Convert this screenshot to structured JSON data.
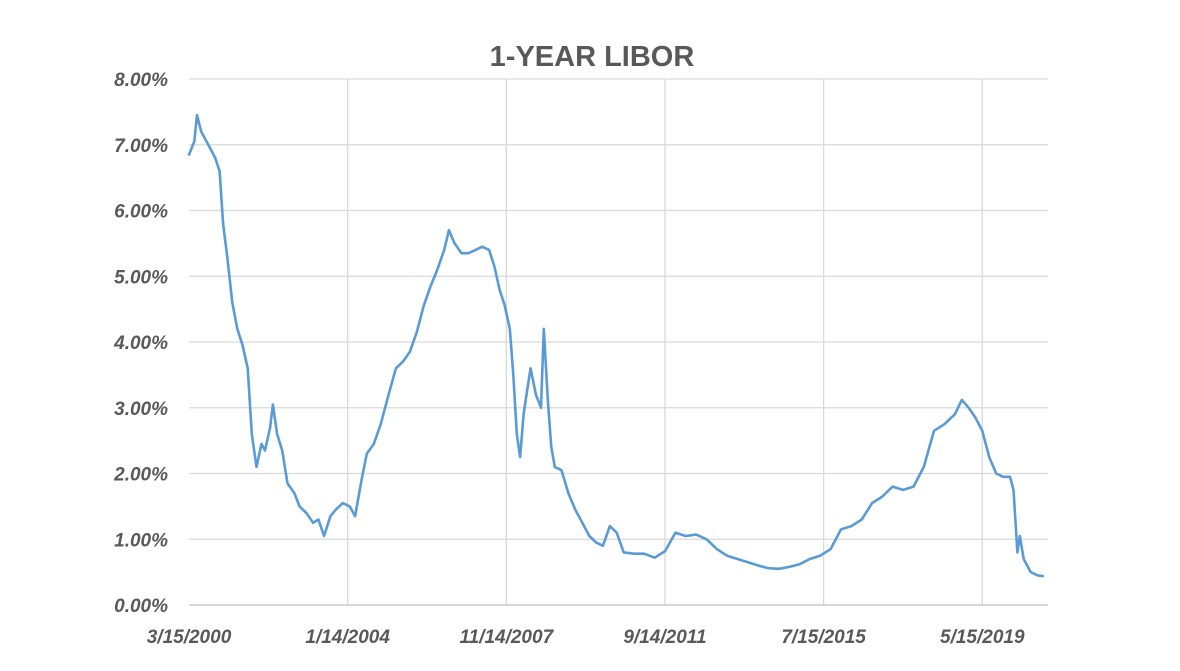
{
  "chart_data": {
    "type": "line",
    "title": "1-YEAR LIBOR",
    "xlabel": "",
    "ylabel": "",
    "x_axis_type": "date",
    "xlim": [
      "2000-03-15",
      "2020-12-15"
    ],
    "ylim": [
      0,
      8
    ],
    "y_ticks": [
      "0.00%",
      "1.00%",
      "2.00%",
      "3.00%",
      "4.00%",
      "5.00%",
      "6.00%",
      "7.00%",
      "8.00%"
    ],
    "x_ticks": [
      {
        "date": "2000-03-15",
        "label": "3/15/2000"
      },
      {
        "date": "2004-01-14",
        "label": "1/14/2004"
      },
      {
        "date": "2007-11-14",
        "label": "11/14/2007"
      },
      {
        "date": "2011-09-14",
        "label": "9/14/2011"
      },
      {
        "date": "2015-07-15",
        "label": "7/15/2015"
      },
      {
        "date": "2019-05-15",
        "label": "5/15/2019"
      }
    ],
    "grid": true,
    "legend": "none",
    "colors": {
      "series": "#5b9bd5",
      "grid": "#d9d9d9",
      "text": "#595959"
    },
    "series": [
      {
        "color": "#5b9bd5",
        "points": [
          [
            "2000-03-15",
            6.85
          ],
          [
            "2000-05-01",
            7.05
          ],
          [
            "2000-05-25",
            7.45
          ],
          [
            "2000-07-01",
            7.2
          ],
          [
            "2000-09-01",
            7.0
          ],
          [
            "2000-11-01",
            6.8
          ],
          [
            "2000-12-10",
            6.6
          ],
          [
            "2001-01-10",
            5.8
          ],
          [
            "2001-02-15",
            5.3
          ],
          [
            "2001-04-01",
            4.6
          ],
          [
            "2001-05-15",
            4.2
          ],
          [
            "2001-07-01",
            3.95
          ],
          [
            "2001-08-15",
            3.6
          ],
          [
            "2001-09-20",
            2.6
          ],
          [
            "2001-11-01",
            2.1
          ],
          [
            "2001-12-15",
            2.45
          ],
          [
            "2002-01-15",
            2.35
          ],
          [
            "2002-03-01",
            2.7
          ],
          [
            "2002-03-25",
            3.05
          ],
          [
            "2002-05-01",
            2.6
          ],
          [
            "2002-06-15",
            2.35
          ],
          [
            "2002-08-01",
            1.85
          ],
          [
            "2002-10-01",
            1.7
          ],
          [
            "2002-11-15",
            1.5
          ],
          [
            "2003-01-15",
            1.4
          ],
          [
            "2003-03-15",
            1.25
          ],
          [
            "2003-05-01",
            1.3
          ],
          [
            "2003-06-20",
            1.05
          ],
          [
            "2003-08-15",
            1.35
          ],
          [
            "2003-10-01",
            1.45
          ],
          [
            "2003-12-01",
            1.55
          ],
          [
            "2004-02-01",
            1.5
          ],
          [
            "2004-03-20",
            1.35
          ],
          [
            "2004-05-15",
            1.9
          ],
          [
            "2004-07-01",
            2.3
          ],
          [
            "2004-09-01",
            2.45
          ],
          [
            "2004-11-01",
            2.75
          ],
          [
            "2005-01-01",
            3.15
          ],
          [
            "2005-03-15",
            3.6
          ],
          [
            "2005-05-15",
            3.7
          ],
          [
            "2005-07-15",
            3.85
          ],
          [
            "2005-09-15",
            4.15
          ],
          [
            "2005-11-15",
            4.55
          ],
          [
            "2006-01-15",
            4.85
          ],
          [
            "2006-03-15",
            5.1
          ],
          [
            "2006-05-15",
            5.4
          ],
          [
            "2006-06-25",
            5.7
          ],
          [
            "2006-08-15",
            5.5
          ],
          [
            "2006-10-15",
            5.35
          ],
          [
            "2006-12-15",
            5.35
          ],
          [
            "2007-02-15",
            5.4
          ],
          [
            "2007-04-15",
            5.45
          ],
          [
            "2007-06-15",
            5.4
          ],
          [
            "2007-08-01",
            5.15
          ],
          [
            "2007-09-15",
            4.8
          ],
          [
            "2007-11-01",
            4.55
          ],
          [
            "2007-12-15",
            4.2
          ],
          [
            "2008-01-15",
            3.5
          ],
          [
            "2008-02-15",
            2.6
          ],
          [
            "2008-03-15",
            2.25
          ],
          [
            "2008-04-15",
            2.9
          ],
          [
            "2008-05-15",
            3.25
          ],
          [
            "2008-06-15",
            3.6
          ],
          [
            "2008-08-01",
            3.2
          ],
          [
            "2008-09-15",
            3.0
          ],
          [
            "2008-10-10",
            4.2
          ],
          [
            "2008-11-15",
            3.1
          ],
          [
            "2008-12-15",
            2.4
          ],
          [
            "2009-01-15",
            2.1
          ],
          [
            "2009-03-15",
            2.05
          ],
          [
            "2009-05-15",
            1.7
          ],
          [
            "2009-07-15",
            1.45
          ],
          [
            "2009-09-15",
            1.25
          ],
          [
            "2009-11-15",
            1.05
          ],
          [
            "2010-01-15",
            0.95
          ],
          [
            "2010-03-15",
            0.9
          ],
          [
            "2010-05-15",
            1.2
          ],
          [
            "2010-07-15",
            1.1
          ],
          [
            "2010-09-15",
            0.8
          ],
          [
            "2010-12-15",
            0.78
          ],
          [
            "2011-03-15",
            0.78
          ],
          [
            "2011-06-15",
            0.72
          ],
          [
            "2011-09-15",
            0.82
          ],
          [
            "2011-12-15",
            1.1
          ],
          [
            "2012-03-15",
            1.05
          ],
          [
            "2012-06-15",
            1.07
          ],
          [
            "2012-09-15",
            1.0
          ],
          [
            "2012-12-15",
            0.85
          ],
          [
            "2013-03-15",
            0.75
          ],
          [
            "2013-06-15",
            0.7
          ],
          [
            "2013-09-15",
            0.65
          ],
          [
            "2013-12-15",
            0.6
          ],
          [
            "2014-03-15",
            0.56
          ],
          [
            "2014-06-15",
            0.55
          ],
          [
            "2014-09-15",
            0.58
          ],
          [
            "2014-12-15",
            0.62
          ],
          [
            "2015-03-15",
            0.7
          ],
          [
            "2015-06-15",
            0.75
          ],
          [
            "2015-09-15",
            0.85
          ],
          [
            "2015-12-15",
            1.15
          ],
          [
            "2016-03-15",
            1.2
          ],
          [
            "2016-06-15",
            1.3
          ],
          [
            "2016-09-15",
            1.55
          ],
          [
            "2016-12-15",
            1.65
          ],
          [
            "2017-03-15",
            1.8
          ],
          [
            "2017-06-15",
            1.75
          ],
          [
            "2017-09-15",
            1.8
          ],
          [
            "2017-12-15",
            2.1
          ],
          [
            "2018-03-15",
            2.65
          ],
          [
            "2018-06-15",
            2.75
          ],
          [
            "2018-09-15",
            2.9
          ],
          [
            "2018-11-15",
            3.12
          ],
          [
            "2019-01-15",
            3.0
          ],
          [
            "2019-03-15",
            2.85
          ],
          [
            "2019-05-15",
            2.65
          ],
          [
            "2019-07-15",
            2.25
          ],
          [
            "2019-09-15",
            2.0
          ],
          [
            "2019-11-15",
            1.95
          ],
          [
            "2020-01-15",
            1.95
          ],
          [
            "2020-02-15",
            1.75
          ],
          [
            "2020-03-20",
            0.8
          ],
          [
            "2020-04-10",
            1.05
          ],
          [
            "2020-05-15",
            0.7
          ],
          [
            "2020-07-15",
            0.5
          ],
          [
            "2020-09-15",
            0.45
          ],
          [
            "2020-10-30",
            0.44
          ]
        ]
      }
    ]
  }
}
